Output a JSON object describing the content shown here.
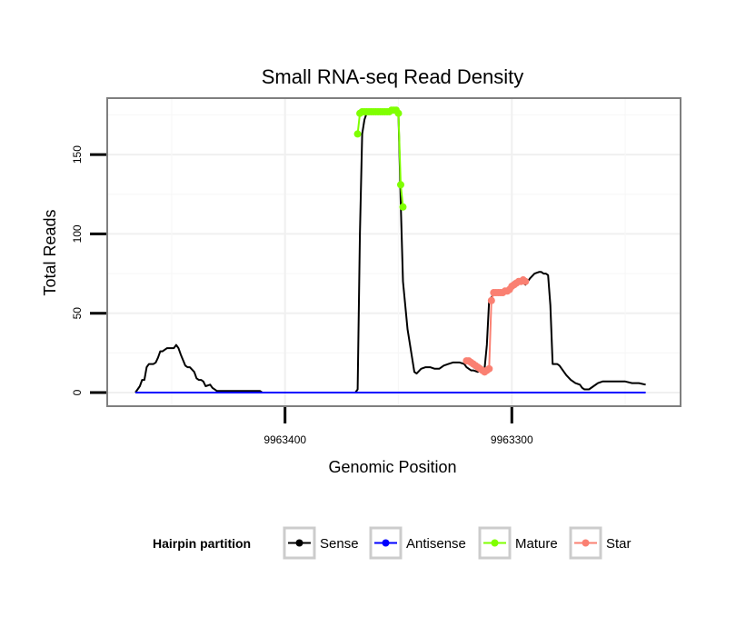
{
  "chart_data": {
    "type": "line",
    "title": "Small RNA-seq Read Density",
    "xlabel": "Genomic Position",
    "ylabel": "Total Reads",
    "x_reversed": true,
    "xlim": [
      9963478,
      9963226
    ],
    "ylim": [
      -8,
      185
    ],
    "xticks": [
      9963400,
      9963300
    ],
    "xtick_labels": [
      "9963400",
      "9963300"
    ],
    "yticks": [
      0,
      50,
      100,
      150
    ],
    "ytick_labels": [
      "0",
      "50",
      "100",
      "150"
    ],
    "grid": true,
    "legend": {
      "title": "Hairpin partition",
      "position": "bottom",
      "entries": [
        {
          "label": "Sense",
          "color": "#000000"
        },
        {
          "label": "Antisense",
          "color": "#0000ff"
        },
        {
          "label": "Mature",
          "color": "#7fff00"
        },
        {
          "label": "Star",
          "color": "#fa8072"
        }
      ]
    },
    "series": [
      {
        "name": "Sense",
        "color": "#000000",
        "style": "line",
        "x": [
          9963466,
          9963464,
          9963463,
          9963462,
          9963461,
          9963460,
          9963458,
          9963457,
          9963456,
          9963455,
          9963454,
          9963452,
          9963450,
          9963449,
          9963448,
          9963447,
          9963446,
          9963444,
          9963443,
          9963442,
          9963440,
          9963439,
          9963438,
          9963437,
          9963436,
          9963435,
          9963433,
          9963432,
          9963430,
          9963412,
          9963411,
          9963410,
          9963369,
          9963368,
          9963367,
          9963366,
          9963365,
          9963364,
          9963363,
          9963361,
          9963358,
          9963357,
          9963356,
          9963355,
          9963354,
          9963353,
          9963352,
          9963351,
          9963350,
          9963349,
          9963348,
          9963346,
          9963344,
          9963343,
          9963342,
          9963340,
          9963338,
          9963336,
          9963334,
          9963332,
          9963330,
          9963328,
          9963326,
          9963323,
          9963321,
          9963320,
          9963318,
          9963317,
          9963315,
          9963314,
          9963312,
          9963311,
          9963310,
          9963308,
          9963306,
          9963305,
          9963304,
          9963303,
          9963302,
          9963301,
          9963300,
          9963299,
          9963298,
          9963296,
          9963294,
          9963292,
          9963290,
          9963288,
          9963287,
          9963286,
          9963285,
          9963284,
          9963283,
          9963282,
          9963281,
          9963280,
          9963279,
          9963278,
          9963276,
          9963274,
          9963272,
          9963270,
          9963269,
          9963268,
          9963267,
          9963266,
          9963264,
          9963262,
          9963260,
          9963258,
          9963256,
          9963254,
          9963252,
          9963250,
          9963247,
          9963246,
          9963244,
          9963241
        ],
        "y": [
          0,
          4,
          8,
          8,
          16,
          18,
          18,
          19,
          22,
          26,
          26,
          28,
          28,
          28,
          30,
          28,
          24,
          17,
          16,
          16,
          13,
          9,
          8,
          8,
          7,
          4,
          5,
          3,
          1,
          1,
          1,
          0,
          0,
          2,
          100,
          163,
          172,
          176,
          177,
          177,
          177,
          177,
          177,
          177,
          177,
          178,
          178,
          178,
          176,
          120,
          70,
          40,
          22,
          13,
          12,
          15,
          16,
          16,
          15,
          15,
          17,
          18,
          19,
          19,
          18,
          16,
          14,
          14,
          13,
          14,
          15,
          30,
          58,
          62,
          63,
          63,
          63,
          64,
          65,
          67,
          68,
          70,
          70,
          70,
          68,
          72,
          75,
          76,
          76,
          75,
          75,
          74,
          55,
          18,
          18,
          18,
          17,
          15,
          11,
          8,
          6,
          5,
          3,
          2,
          2,
          2,
          4,
          6,
          7,
          7,
          7,
          7,
          7,
          7,
          6,
          6,
          6,
          5
        ]
      },
      {
        "name": "Antisense",
        "color": "#0000ff",
        "style": "line",
        "x": [
          9963466,
          9963241
        ],
        "y": [
          0,
          0
        ]
      },
      {
        "name": "Mature",
        "color": "#7fff00",
        "style": "line-points",
        "x": [
          9963368,
          9963367,
          9963366,
          9963365,
          9963364,
          9963363,
          9963362,
          9963361,
          9963360,
          9963359,
          9963358,
          9963357,
          9963356,
          9963355,
          9963354,
          9963353,
          9963352,
          9963351,
          9963350,
          9963349,
          9963348
        ],
        "y": [
          163,
          176,
          177,
          177,
          177,
          177,
          177,
          177,
          177,
          177,
          177,
          177,
          177,
          177,
          177,
          178,
          178,
          178,
          176,
          131,
          117
        ]
      },
      {
        "name": "Star",
        "color": "#fa8072",
        "style": "line-points",
        "x": [
          9963320,
          9963319,
          9963318,
          9963317,
          9963316,
          9963315,
          9963314,
          9963313,
          9963312,
          9963311,
          9963310,
          9963309,
          9963308,
          9963307,
          9963306,
          9963305,
          9963304,
          9963303,
          9963302,
          9963301,
          9963300,
          9963299,
          9963298,
          9963297,
          9963296,
          9963295,
          9963294
        ],
        "y": [
          20,
          20,
          19,
          18,
          17,
          16,
          15,
          14,
          13,
          14,
          15,
          58,
          63,
          63,
          63,
          63,
          63,
          64,
          64,
          65,
          67,
          68,
          69,
          70,
          70,
          71,
          70
        ]
      }
    ]
  }
}
